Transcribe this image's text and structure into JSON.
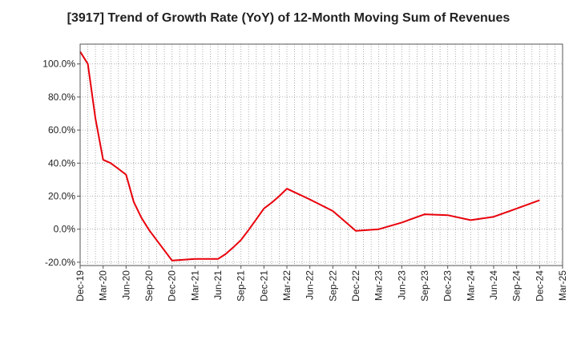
{
  "chart_data": {
    "type": "line",
    "title": "[3917]  Trend of Growth Rate (YoY) of 12-Month Moving Sum of Revenues",
    "xlabel": "",
    "ylabel": "",
    "ylim": [
      -22,
      112
    ],
    "y_ticks": [
      "-20.0%",
      "0.0%",
      "20.0%",
      "40.0%",
      "60.0%",
      "80.0%",
      "100.0%"
    ],
    "y_tick_values": [
      -20,
      0,
      20,
      40,
      60,
      80,
      100
    ],
    "x_ticks": [
      "Dec-19",
      "Mar-20",
      "Jun-20",
      "Sep-20",
      "Dec-20",
      "Mar-21",
      "Jun-21",
      "Sep-21",
      "Dec-21",
      "Mar-22",
      "Jun-22",
      "Sep-22",
      "Dec-22",
      "Mar-23",
      "Jun-23",
      "Sep-23",
      "Dec-23",
      "Mar-24",
      "Jun-24",
      "Sep-24",
      "Dec-24",
      "Mar-25"
    ],
    "grid": true,
    "series": [
      {
        "color": "#e8000b",
        "x": [
          "Dec-19",
          "Jan-20",
          "Feb-20",
          "Mar-20",
          "Apr-20",
          "May-20",
          "Jun-20",
          "Jul-20",
          "Aug-20",
          "Sep-20",
          "Dec-20",
          "Mar-21",
          "Jun-21",
          "Jul-21",
          "Aug-21",
          "Sep-21",
          "Oct-21",
          "Nov-21",
          "Dec-21",
          "Jan-22",
          "Feb-22",
          "Mar-22",
          "Jun-22",
          "Sep-22",
          "Dec-22",
          "Mar-23",
          "Jun-23",
          "Sep-23",
          "Dec-23",
          "Mar-24",
          "Jun-24",
          "Sep-24",
          "Dec-24"
        ],
        "values": [
          107.5,
          100.0,
          67.0,
          42.0,
          40.0,
          36.5,
          33.0,
          16.5,
          7.0,
          -0.5,
          -19.0,
          -18.0,
          -18.0,
          -15.0,
          -11.0,
          -6.5,
          -0.5,
          6.0,
          12.5,
          16.0,
          20.0,
          24.5,
          18.0,
          11.0,
          -1.0,
          0.0,
          4.0,
          9.0,
          8.5,
          5.5,
          7.5,
          12.5,
          17.5
        ]
      }
    ]
  }
}
